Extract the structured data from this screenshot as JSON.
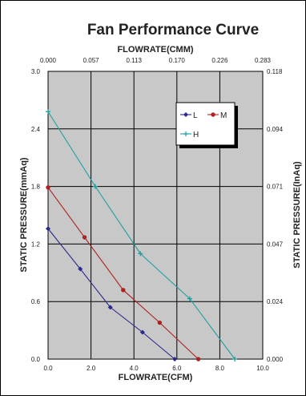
{
  "chart_data": {
    "type": "line",
    "title": "Fan Performance Curve",
    "xlabel": "FLOWRATE(CFM)",
    "xlabel_top": "FLOWRATE(CMM)",
    "ylabel": "STATIC PRESSURE(mmAq)",
    "ylabel_right": "STATIC PRESSURE(InAq)",
    "xlim": [
      0,
      10
    ],
    "ylim": [
      0,
      3.0
    ],
    "grid": true,
    "legend_position": "top-right",
    "plot_background": "#c8c8c8",
    "x_ticks": [
      "0.0",
      "2.0",
      "4.0",
      "6.0",
      "8.0",
      "10.0"
    ],
    "x_ticks_top": [
      "0.000",
      "0.057",
      "0.113",
      "0.170",
      "0.226",
      "0.283"
    ],
    "y_ticks": [
      "0.0",
      "0.6",
      "1.2",
      "1.8",
      "2.4",
      "3.0"
    ],
    "y_ticks_right": [
      "0.000",
      "0.024",
      "0.047",
      "0.071",
      "0.094",
      "0.118"
    ],
    "series": [
      {
        "name": "L",
        "color": "#2a2a8c",
        "marker": "diamond",
        "x": [
          0.0,
          1.5,
          2.9,
          4.4,
          5.9
        ],
        "y": [
          1.36,
          0.94,
          0.54,
          0.28,
          0.0
        ]
      },
      {
        "name": "M",
        "color": "#b02020",
        "marker": "circle",
        "x": [
          0.0,
          1.7,
          3.5,
          5.2,
          7.0
        ],
        "y": [
          1.79,
          1.27,
          0.72,
          0.38,
          0.0
        ]
      },
      {
        "name": "H",
        "color": "#20a0a0",
        "marker": "plus",
        "x": [
          0.0,
          2.2,
          4.3,
          6.6,
          8.7
        ],
        "y": [
          2.58,
          1.8,
          1.1,
          0.63,
          0.0
        ]
      }
    ]
  }
}
